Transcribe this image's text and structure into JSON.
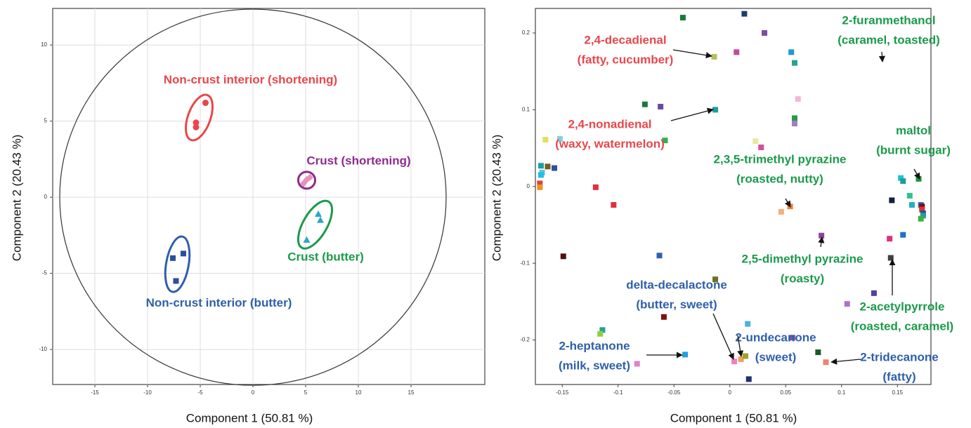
{
  "chart_data": [
    {
      "type": "scatter",
      "xlabel": "Component 1 (50.81 %)",
      "ylabel": "Component 2 (20.43 %)",
      "xlim": [
        -19,
        22
      ],
      "ylim": [
        -12.3,
        12.4
      ],
      "xticks": [
        -15,
        -10,
        -5,
        0,
        5,
        10,
        15
      ],
      "yticks": [
        -10,
        -5,
        0,
        5,
        10
      ],
      "grid": true,
      "series": [
        {
          "color": "#e8474c",
          "marker": "circle",
          "x": [
            -4.5,
            -5.4,
            -5.4
          ],
          "values": [
            6.2,
            4.9,
            4.6
          ]
        },
        {
          "color": "#e58fc0",
          "marker": "diamond",
          "x": [
            5.1,
            5.4,
            4.8
          ],
          "values": [
            1.15,
            1.3,
            0.9
          ]
        },
        {
          "color": "#2aa5c8",
          "marker": "triangle",
          "x": [
            6.2,
            6.4,
            5.1
          ],
          "values": [
            -1.1,
            -1.5,
            -2.8
          ]
        },
        {
          "color": "#2c4e9e",
          "marker": "square",
          "x": [
            -6.6,
            -7.6,
            -7.3
          ],
          "values": [
            -3.7,
            -4.0,
            -5.5
          ]
        }
      ],
      "annotations": [
        {
          "text": "Non-crust interior (shortening)",
          "color": "#e8474c"
        },
        {
          "text": "Crust (shortening)",
          "color": "#8e2a8e"
        },
        {
          "text": "Crust (butter)",
          "color": "#1a9a4a"
        },
        {
          "text": "Non-crust interior (butter)",
          "color": "#2e5faa"
        }
      ]
    },
    {
      "type": "scatter",
      "xlabel": "Component 1 (50.81 %)",
      "ylabel": "Component 2 (20.43 %)",
      "xlim": [
        -0.174,
        0.18
      ],
      "ylim": [
        -0.258,
        0.232
      ],
      "xticks": [
        -0.15,
        -0.1,
        -0.05,
        0,
        0.05,
        0.1,
        0.15
      ],
      "yticks": [
        -0.2,
        -0.1,
        0,
        0.1,
        0.2
      ],
      "grid": false,
      "marker": "square",
      "x": [
        -0.042,
        0.013,
        0.031,
        -0.014,
        0.006,
        0.055,
        0.058,
        0.061,
        -0.076,
        -0.062,
        -0.013,
        0.058,
        0.058,
        -0.165,
        0.023,
        0.028,
        -0.058,
        -0.152,
        -0.169,
        -0.163,
        -0.157,
        -0.168,
        -0.169,
        -0.17,
        -0.17,
        -0.12,
        -0.104,
        0.054,
        0.046,
        0.153,
        0.155,
        0.169,
        0.161,
        0.163,
        0.145,
        0.171,
        0.172,
        0.172,
        0.173,
        0.173,
        0.171,
        0.155,
        0.143,
        0.082,
        0.144,
        -0.063,
        -0.149,
        -0.013,
        0.129,
        0.105,
        -0.059,
        -0.114,
        -0.116,
        0.016,
        0.056,
        -0.04,
        -0.083,
        0.004,
        0.01,
        0.014,
        0.079,
        0.086,
        0.017
      ],
      "values": [
        0.22,
        0.225,
        0.2,
        0.169,
        0.175,
        0.175,
        0.161,
        0.114,
        0.107,
        0.104,
        0.1,
        0.089,
        0.082,
        0.061,
        0.059,
        0.051,
        0.06,
        0.062,
        0.027,
        0.026,
        0.024,
        0.018,
        0.015,
        0.004,
        -0.001,
        -0.001,
        -0.024,
        -0.026,
        -0.033,
        0.011,
        0.007,
        0.01,
        -0.012,
        -0.024,
        -0.018,
        -0.024,
        -0.026,
        -0.03,
        -0.035,
        -0.038,
        -0.042,
        -0.063,
        -0.068,
        -0.064,
        -0.093,
        -0.09,
        -0.091,
        -0.121,
        -0.139,
        -0.153,
        -0.17,
        -0.187,
        -0.192,
        -0.179,
        -0.197,
        -0.219,
        -0.231,
        -0.228,
        -0.225,
        -0.221,
        -0.216,
        -0.229,
        -0.251
      ],
      "colors": [
        "#1a7a3a",
        "#1e3a6e",
        "#7a4ea0",
        "#b8c060",
        "#c04aa0",
        "#1e9ad0",
        "#2aa090",
        "#f0b8d8",
        "#1a7a3a",
        "#6a4aa0",
        "#1aa0a0",
        "#2a9a4a",
        "#a080c0",
        "#e0e060",
        "#e8e8a0",
        "#d050a0",
        "#30b050",
        "#80d0e0",
        "#1aa0a0",
        "#706020",
        "#3050a0",
        "#60c0e0",
        "#20c0e0",
        "#e04040",
        "#f09020",
        "#e03040",
        "#e03040",
        "#f08030",
        "#f0b080",
        "#20c0e0",
        "#20a090",
        "#209040",
        "#30c090",
        "#20b0c0",
        "#102040",
        "#4060c0",
        "#701020",
        "#e03030",
        "#2050a0",
        "#20a0a0",
        "#40b040",
        "#2070d0",
        "#e03080",
        "#9040a0",
        "#404040",
        "#3060b0",
        "#501010",
        "#707020",
        "#5040a0",
        "#b070d0",
        "#801010",
        "#20a0a0",
        "#90d040",
        "#50b0e0",
        "#8050b0",
        "#20a0e0",
        "#e080d0",
        "#f080c0",
        "#f0a060",
        "#a0a030",
        "#1a5a2a",
        "#f08070",
        "#203070"
      ],
      "annotations": [
        {
          "lines": [
            "2,4-decadienal",
            "(fatty, cucumber)"
          ],
          "color": "#e8474c"
        },
        {
          "lines": [
            "2-furanmethanol",
            "(caramel, toasted)"
          ],
          "color": "#1a9a4a"
        },
        {
          "lines": [
            "2,4-nonadienal",
            "(waxy, watermelon)"
          ],
          "color": "#e8474c"
        },
        {
          "lines": [
            "maltol",
            "(burnt sugar)"
          ],
          "color": "#1a9a4a"
        },
        {
          "lines": [
            "2,3,5-trimethyl pyrazine",
            "(roasted, nutty)"
          ],
          "color": "#1a9a4a"
        },
        {
          "lines": [
            "2,5-dimethyl pyrazine",
            "(roasty)"
          ],
          "color": "#1a9a4a"
        },
        {
          "lines": [
            "delta-decalactone",
            "(butter, sweet)"
          ],
          "color": "#2e5faa"
        },
        {
          "lines": [
            "2-acetylpyrrole",
            "(roasted, caramel)"
          ],
          "color": "#1a9a4a"
        },
        {
          "lines": [
            "2-undecanone",
            "(sweet)"
          ],
          "color": "#2e5faa"
        },
        {
          "lines": [
            "2-heptanone",
            "(milk, sweet)"
          ],
          "color": "#2e5faa"
        },
        {
          "lines": [
            "2-tridecanone",
            "(fatty)"
          ],
          "color": "#2e5faa"
        }
      ]
    }
  ]
}
